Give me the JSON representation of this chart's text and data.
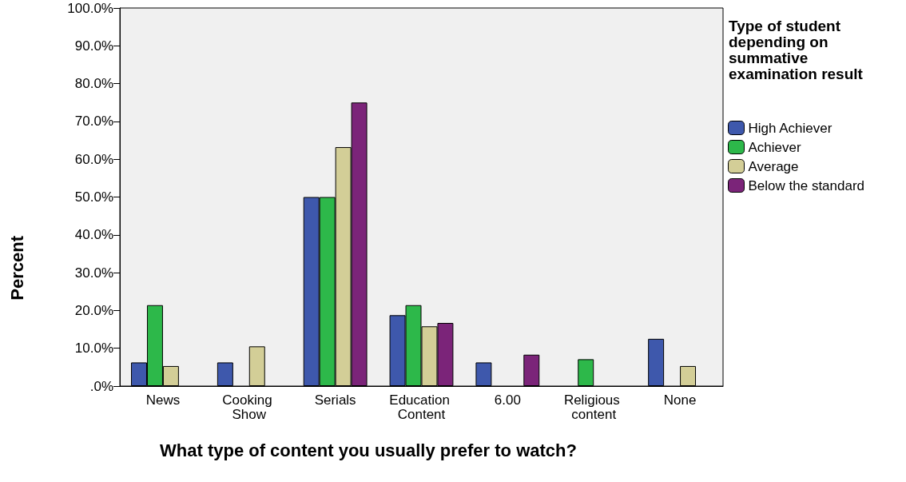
{
  "chart_data": {
    "type": "bar",
    "xlabel": "What type of content you usually prefer to watch?",
    "ylabel": "Percent",
    "legend_title": "Type of student depending on summative examination result",
    "categories": [
      "News",
      "Cooking Show",
      "Serials",
      "Education Content",
      "6.00",
      "Religious content",
      "None"
    ],
    "series": [
      {
        "name": "High Achiever",
        "color": "#3e58ac",
        "values": [
          6.25,
          6.25,
          50,
          18.75,
          6.25,
          null,
          12.5
        ]
      },
      {
        "name": "Achiever",
        "color": "#2db84a",
        "values": [
          21.4,
          null,
          50,
          21.4,
          null,
          7.1,
          null
        ]
      },
      {
        "name": "Average",
        "color": "#d3ce97",
        "values": [
          5.3,
          10.5,
          63.2,
          15.8,
          null,
          null,
          5.3
        ]
      },
      {
        "name": "Below the standard",
        "color": "#7b2479",
        "values": [
          null,
          null,
          75,
          16.7,
          8.3,
          null,
          null
        ]
      }
    ],
    "ylim": [
      0,
      100
    ],
    "yticks": [
      {
        "value": 0,
        "label": ".0%"
      },
      {
        "value": 10,
        "label": "10.0%"
      },
      {
        "value": 20,
        "label": "20.0%"
      },
      {
        "value": 30,
        "label": "30.0%"
      },
      {
        "value": 40,
        "label": "40.0%"
      },
      {
        "value": 50,
        "label": "50.0%"
      },
      {
        "value": 60,
        "label": "60.0%"
      },
      {
        "value": 70,
        "label": "70.0%"
      },
      {
        "value": 80,
        "label": "80.0%"
      },
      {
        "value": 90,
        "label": "90.0%"
      },
      {
        "value": 100,
        "label": "100.0%"
      }
    ],
    "grid": false,
    "legend": "right"
  }
}
